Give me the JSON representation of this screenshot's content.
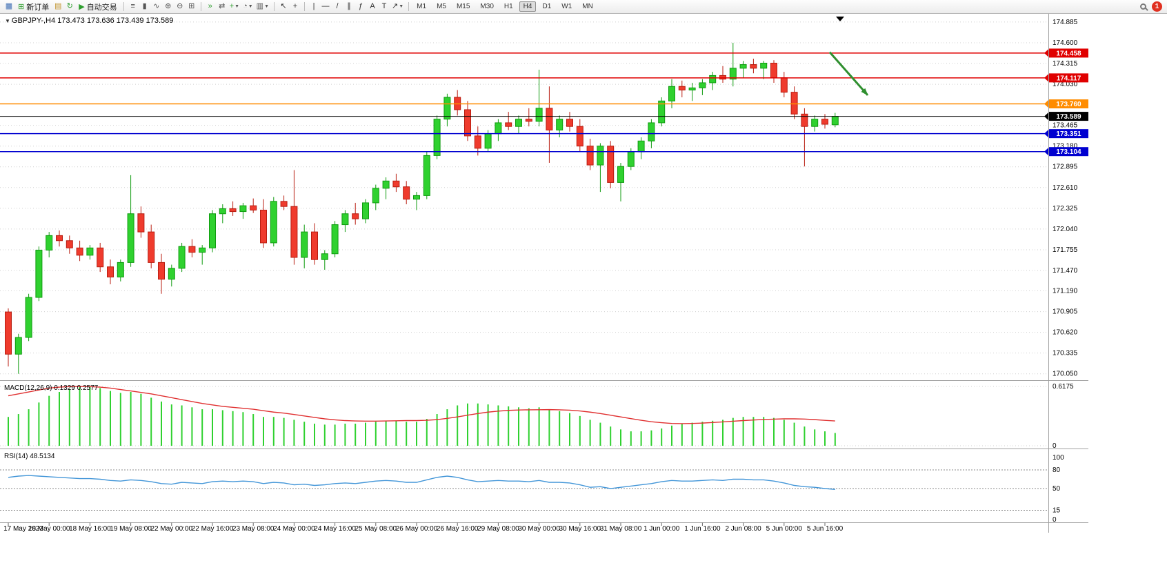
{
  "toolbar": {
    "left_items": [
      {
        "name": "new-chart-icon",
        "glyph": "▦",
        "color": "#3f6fb5"
      },
      {
        "name": "new-order-button",
        "glyph": "⊞",
        "color": "#2e9e2e",
        "label": "新订单"
      },
      {
        "name": "profiles-icon",
        "glyph": "▤",
        "color": "#c2952f"
      },
      {
        "name": "refresh-icon",
        "glyph": "↻",
        "color": "#2e9e2e"
      },
      {
        "name": "auto-trading-button",
        "glyph": "▶",
        "color": "#2e9e2e",
        "label": "自动交易"
      },
      {
        "name": "separator"
      },
      {
        "name": "bar-chart-icon",
        "glyph": "≡",
        "color": "#555555"
      },
      {
        "name": "candlestick-chart-icon",
        "glyph": "▮",
        "color": "#555555"
      },
      {
        "name": "line-chart-icon",
        "glyph": "∿",
        "color": "#555555"
      },
      {
        "name": "zoom-in-icon",
        "glyph": "⊕",
        "color": "#555555"
      },
      {
        "name": "zoom-out-icon",
        "glyph": "⊖",
        "color": "#555555"
      },
      {
        "name": "tile-windows-icon",
        "glyph": "⊞",
        "color": "#555555"
      },
      {
        "name": "separator"
      },
      {
        "name": "auto-scroll-icon",
        "glyph": "»",
        "color": "#2e9e2e"
      },
      {
        "name": "chart-shift-icon",
        "glyph": "⇄",
        "color": "#555555"
      },
      {
        "name": "indicators-icon",
        "glyph": "+",
        "color": "#2e9e2e",
        "dropdown": true
      },
      {
        "name": "periods-icon",
        "glyph": "◔",
        "color": "#555555",
        "dropdown": true
      },
      {
        "name": "templates-icon",
        "glyph": "▥",
        "color": "#555555",
        "dropdown": true
      },
      {
        "name": "separator"
      },
      {
        "name": "cursor-icon",
        "glyph": "↖",
        "color": "#333333"
      },
      {
        "name": "crosshair-icon",
        "glyph": "+",
        "color": "#333333"
      },
      {
        "name": "separator"
      },
      {
        "name": "vertical-line-icon",
        "glyph": "|",
        "color": "#333333"
      },
      {
        "name": "horizontal-line-icon",
        "glyph": "—",
        "color": "#333333"
      },
      {
        "name": "trendline-icon",
        "glyph": "/",
        "color": "#333333"
      },
      {
        "name": "channel-icon",
        "glyph": "∥",
        "color": "#333333"
      },
      {
        "name": "fibonacci-icon",
        "glyph": "ƒ",
        "color": "#333333"
      },
      {
        "name": "text-icon",
        "glyph": "A",
        "color": "#333333"
      },
      {
        "name": "label-icon",
        "glyph": "T",
        "color": "#333333"
      },
      {
        "name": "arrows-icon",
        "glyph": "↗",
        "color": "#333333",
        "dropdown": true
      },
      {
        "name": "separator"
      }
    ],
    "timeframes": [
      "M1",
      "M5",
      "M15",
      "M30",
      "H1",
      "H4",
      "D1",
      "W1",
      "MN"
    ],
    "active_timeframe": "H4",
    "notification_count": "1"
  },
  "chart": {
    "header": {
      "collapse_icon": "▼",
      "title": "GBPJPY-,H4 173.473 173.636 173.439 173.589"
    },
    "macd_label": "MACD(12,26,9) 0.1329 0.2577",
    "rsi_label": "RSI(14) 48.5134"
  },
  "chart_data": [
    {
      "type": "candlestick",
      "symbol": "GBPJPY-",
      "timeframe": "H4",
      "ohlc_current": {
        "open": 173.473,
        "high": 173.636,
        "low": 173.439,
        "close": 173.589
      },
      "ylim": [
        170.0,
        174.96
      ],
      "y_axis_ticks": [
        "174.885",
        "174.600",
        "174.315",
        "174.030",
        "173.465",
        "173.180",
        "172.895",
        "172.610",
        "172.325",
        "172.040",
        "171.755",
        "171.470",
        "171.190",
        "170.905",
        "170.620",
        "170.335",
        "170.050"
      ],
      "x_axis_labels": [
        "17 May 2023",
        "18 May 00:00",
        "18 May 16:00",
        "19 May 08:00",
        "22 May 00:00",
        "22 May 16:00",
        "23 May 08:00",
        "24 May 00:00",
        "24 May 16:00",
        "25 May 08:00",
        "26 May 00:00",
        "26 May 16:00",
        "29 May 08:00",
        "30 May 00:00",
        "30 May 16:00",
        "31 May 08:00",
        "1 Jun 00:00",
        "1 Jun 16:00",
        "2 Jun 08:00",
        "5 Jun 00:00",
        "5 Jun 16:00"
      ],
      "label_every_n_candles": 4,
      "up_color": "#2fd12f",
      "down_color": "#ef3b2d",
      "candles": [
        [
          170.9,
          170.95,
          170.15,
          170.32
        ],
        [
          170.32,
          170.6,
          170.05,
          170.55
        ],
        [
          170.55,
          171.15,
          170.5,
          171.1
        ],
        [
          171.1,
          171.8,
          171.05,
          171.75
        ],
        [
          171.75,
          172.0,
          171.65,
          171.95
        ],
        [
          171.95,
          172.02,
          171.8,
          171.88
        ],
        [
          171.88,
          171.95,
          171.7,
          171.78
        ],
        [
          171.78,
          171.88,
          171.6,
          171.68
        ],
        [
          171.68,
          171.82,
          171.62,
          171.78
        ],
        [
          171.78,
          171.85,
          171.45,
          171.52
        ],
        [
          171.52,
          171.62,
          171.28,
          171.38
        ],
        [
          171.38,
          171.62,
          171.32,
          171.58
        ],
        [
          171.58,
          172.78,
          171.52,
          172.25
        ],
        [
          172.25,
          172.35,
          171.92,
          172.0
        ],
        [
          172.0,
          172.1,
          171.5,
          171.58
        ],
        [
          171.58,
          171.7,
          171.15,
          171.35
        ],
        [
          171.35,
          171.55,
          171.25,
          171.5
        ],
        [
          171.5,
          171.85,
          171.45,
          171.8
        ],
        [
          171.8,
          171.9,
          171.65,
          171.72
        ],
        [
          171.72,
          171.82,
          171.55,
          171.78
        ],
        [
          171.78,
          172.3,
          171.72,
          172.25
        ],
        [
          172.25,
          172.38,
          172.12,
          172.32
        ],
        [
          172.32,
          172.42,
          172.22,
          172.28
        ],
        [
          172.28,
          172.4,
          172.18,
          172.36
        ],
        [
          172.36,
          172.46,
          172.26,
          172.3
        ],
        [
          172.3,
          172.45,
          171.78,
          171.85
        ],
        [
          171.85,
          172.48,
          171.8,
          172.42
        ],
        [
          172.42,
          172.5,
          172.3,
          172.35
        ],
        [
          172.35,
          172.85,
          171.55,
          171.65
        ],
        [
          171.65,
          172.1,
          171.5,
          172.0
        ],
        [
          172.0,
          172.12,
          171.55,
          171.62
        ],
        [
          171.62,
          171.75,
          171.48,
          171.7
        ],
        [
          171.7,
          172.15,
          171.65,
          172.1
        ],
        [
          172.1,
          172.3,
          172.0,
          172.25
        ],
        [
          172.25,
          172.4,
          172.1,
          172.18
        ],
        [
          172.18,
          172.45,
          172.12,
          172.4
        ],
        [
          172.4,
          172.65,
          172.3,
          172.6
        ],
        [
          172.6,
          172.75,
          172.45,
          172.7
        ],
        [
          172.7,
          172.8,
          172.55,
          172.62
        ],
        [
          172.62,
          172.7,
          172.38,
          172.45
        ],
        [
          172.45,
          172.55,
          172.3,
          172.5
        ],
        [
          172.5,
          173.1,
          172.45,
          173.05
        ],
        [
          173.05,
          173.6,
          173.0,
          173.55
        ],
        [
          173.55,
          173.9,
          173.45,
          173.85
        ],
        [
          173.85,
          173.95,
          173.6,
          173.68
        ],
        [
          173.68,
          173.8,
          173.25,
          173.32
        ],
        [
          173.32,
          173.45,
          173.05,
          173.15
        ],
        [
          173.15,
          173.4,
          173.1,
          173.35
        ],
        [
          173.35,
          173.55,
          173.25,
          173.5
        ],
        [
          173.5,
          173.65,
          173.4,
          173.45
        ],
        [
          173.45,
          173.6,
          173.35,
          173.55
        ],
        [
          173.55,
          173.7,
          173.45,
          173.52
        ],
        [
          173.52,
          174.23,
          173.45,
          173.7
        ],
        [
          173.7,
          174.0,
          172.95,
          173.4
        ],
        [
          173.4,
          173.6,
          173.3,
          173.55
        ],
        [
          173.55,
          173.65,
          173.38,
          173.45
        ],
        [
          173.45,
          173.55,
          173.1,
          173.18
        ],
        [
          173.18,
          173.28,
          172.85,
          172.92
        ],
        [
          172.92,
          173.22,
          172.55,
          173.18
        ],
        [
          173.18,
          173.25,
          172.6,
          172.68
        ],
        [
          172.68,
          172.95,
          172.42,
          172.9
        ],
        [
          172.9,
          173.15,
          172.85,
          173.1
        ],
        [
          173.1,
          173.3,
          173.0,
          173.25
        ],
        [
          173.25,
          173.55,
          173.15,
          173.5
        ],
        [
          173.5,
          173.85,
          173.45,
          173.8
        ],
        [
          173.8,
          174.1,
          173.7,
          174.0
        ],
        [
          174.0,
          174.08,
          173.85,
          173.95
        ],
        [
          173.95,
          174.05,
          173.8,
          173.98
        ],
        [
          173.98,
          174.1,
          173.88,
          174.05
        ],
        [
          174.05,
          174.2,
          173.95,
          174.15
        ],
        [
          174.15,
          174.28,
          174.05,
          174.1
        ],
        [
          174.1,
          174.6,
          174.0,
          174.25
        ],
        [
          174.25,
          174.35,
          174.12,
          174.3
        ],
        [
          174.3,
          174.38,
          174.18,
          174.25
        ],
        [
          174.25,
          174.35,
          174.1,
          174.32
        ],
        [
          174.32,
          174.36,
          174.05,
          174.12
        ],
        [
          174.12,
          174.2,
          173.85,
          173.92
        ],
        [
          173.92,
          174.0,
          173.55,
          173.62
        ],
        [
          173.62,
          173.7,
          172.9,
          173.45
        ],
        [
          173.45,
          173.6,
          173.38,
          173.55
        ],
        [
          173.55,
          173.62,
          173.42,
          173.48
        ],
        [
          173.473,
          173.636,
          173.439,
          173.589
        ]
      ],
      "levels": [
        {
          "price": 174.458,
          "label": "174.458",
          "color": "#e00000",
          "style": "solid"
        },
        {
          "price": 174.117,
          "label": "174.117",
          "color": "#e00000",
          "style": "solid"
        },
        {
          "price": 173.76,
          "label": "173.760",
          "color": "#ff8c00",
          "style": "solid"
        },
        {
          "price": 173.589,
          "label": "173.589",
          "color": "#000000",
          "style": "current-price"
        },
        {
          "price": 173.351,
          "label": "173.351",
          "color": "#0000d0",
          "style": "solid"
        },
        {
          "price": 173.104,
          "label": "173.104",
          "color": "#0000d0",
          "style": "solid"
        }
      ],
      "annotation_arrow": {
        "from_price": 174.47,
        "to_price": 173.88,
        "color": "#2f8f2f"
      }
    },
    {
      "type": "bar",
      "name": "MACD",
      "params": "12,26,9",
      "values_label": "0.1329 0.2577",
      "ylim": [
        0,
        0.6175
      ],
      "y_axis_ticks": [
        "0.6175",
        "0"
      ],
      "histogram_color": "#2fd12f",
      "signal_color": "#e03030",
      "histogram": [
        0.3,
        0.33,
        0.38,
        0.45,
        0.52,
        0.56,
        0.59,
        0.61,
        0.6175,
        0.6,
        0.57,
        0.55,
        0.56,
        0.54,
        0.5,
        0.46,
        0.43,
        0.42,
        0.4,
        0.38,
        0.38,
        0.37,
        0.36,
        0.35,
        0.33,
        0.3,
        0.3,
        0.29,
        0.27,
        0.25,
        0.23,
        0.22,
        0.22,
        0.23,
        0.23,
        0.24,
        0.25,
        0.26,
        0.26,
        0.25,
        0.25,
        0.28,
        0.33,
        0.38,
        0.42,
        0.44,
        0.44,
        0.43,
        0.42,
        0.41,
        0.4,
        0.39,
        0.4,
        0.38,
        0.36,
        0.34,
        0.31,
        0.27,
        0.24,
        0.2,
        0.17,
        0.15,
        0.15,
        0.16,
        0.18,
        0.21,
        0.23,
        0.24,
        0.25,
        0.26,
        0.27,
        0.29,
        0.3,
        0.3,
        0.3,
        0.29,
        0.27,
        0.24,
        0.2,
        0.17,
        0.15,
        0.1329
      ],
      "signal": [
        0.52,
        0.54,
        0.56,
        0.58,
        0.6,
        0.61,
        0.615,
        0.617,
        0.615,
        0.61,
        0.6,
        0.585,
        0.57,
        0.555,
        0.54,
        0.52,
        0.5,
        0.48,
        0.46,
        0.44,
        0.425,
        0.41,
        0.4,
        0.39,
        0.38,
        0.365,
        0.35,
        0.34,
        0.325,
        0.31,
        0.295,
        0.28,
        0.27,
        0.262,
        0.258,
        0.256,
        0.256,
        0.258,
        0.26,
        0.262,
        0.262,
        0.265,
        0.272,
        0.285,
        0.3,
        0.318,
        0.335,
        0.35,
        0.36,
        0.368,
        0.372,
        0.374,
        0.375,
        0.376,
        0.374,
        0.37,
        0.362,
        0.35,
        0.335,
        0.318,
        0.3,
        0.282,
        0.265,
        0.25,
        0.24,
        0.232,
        0.23,
        0.232,
        0.236,
        0.242,
        0.248,
        0.255,
        0.262,
        0.268,
        0.273,
        0.277,
        0.28,
        0.28,
        0.278,
        0.272,
        0.264,
        0.2577
      ]
    },
    {
      "type": "line",
      "name": "RSI",
      "period": 14,
      "current": 48.5134,
      "ylim": [
        0,
        100
      ],
      "y_axis_ticks": [
        "100",
        "80",
        "50",
        "15",
        "0"
      ],
      "levels": [
        80,
        50,
        15
      ],
      "line_color": "#4396d8",
      "values": [
        68,
        70,
        71,
        70,
        69,
        68,
        67,
        66,
        66,
        65,
        63,
        62,
        64,
        63,
        61,
        58,
        57,
        60,
        59,
        58,
        61,
        62,
        61,
        62,
        61,
        58,
        60,
        59,
        56,
        57,
        55,
        56,
        58,
        59,
        58,
        60,
        62,
        63,
        62,
        60,
        60,
        64,
        68,
        70,
        68,
        64,
        61,
        62,
        63,
        62,
        62,
        61,
        63,
        60,
        60,
        59,
        56,
        52,
        53,
        50,
        52,
        54,
        56,
        58,
        61,
        63,
        62,
        62,
        63,
        64,
        63,
        65,
        65,
        64,
        64,
        62,
        59,
        55,
        53,
        52,
        50,
        48.5134
      ]
    }
  ]
}
